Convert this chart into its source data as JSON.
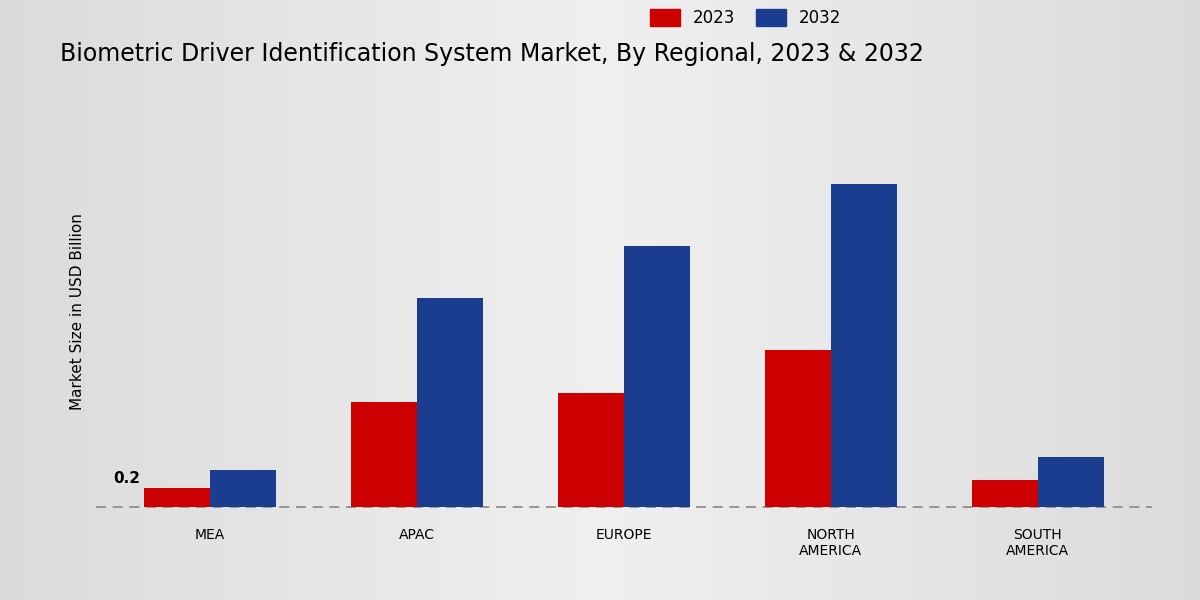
{
  "title": "Biometric Driver Identification System Market, By Regional, 2023 & 2032",
  "categories": [
    "MEA",
    "APAC",
    "EUROPE",
    "NORTH\nAMERICA",
    "SOUTH\nAMERICA"
  ],
  "values_2023": [
    0.2,
    1.1,
    1.2,
    1.65,
    0.28
  ],
  "values_2032": [
    0.38,
    2.2,
    2.75,
    3.4,
    0.52
  ],
  "color_2023": "#cc0000",
  "color_2032": "#1a3d8f",
  "ylabel": "Market Size in USD Billion",
  "ylim": [
    -0.1,
    4.2
  ],
  "bg_left": "#d0d0d0",
  "bg_center": "#f0f0f0",
  "annotation_text": "0.2",
  "dashed_line_y": 0.0,
  "bar_width": 0.32,
  "legend_labels": [
    "2023",
    "2032"
  ],
  "title_fontsize": 17,
  "label_fontsize": 11,
  "tick_fontsize": 10,
  "red_strip_color": "#cc0000"
}
